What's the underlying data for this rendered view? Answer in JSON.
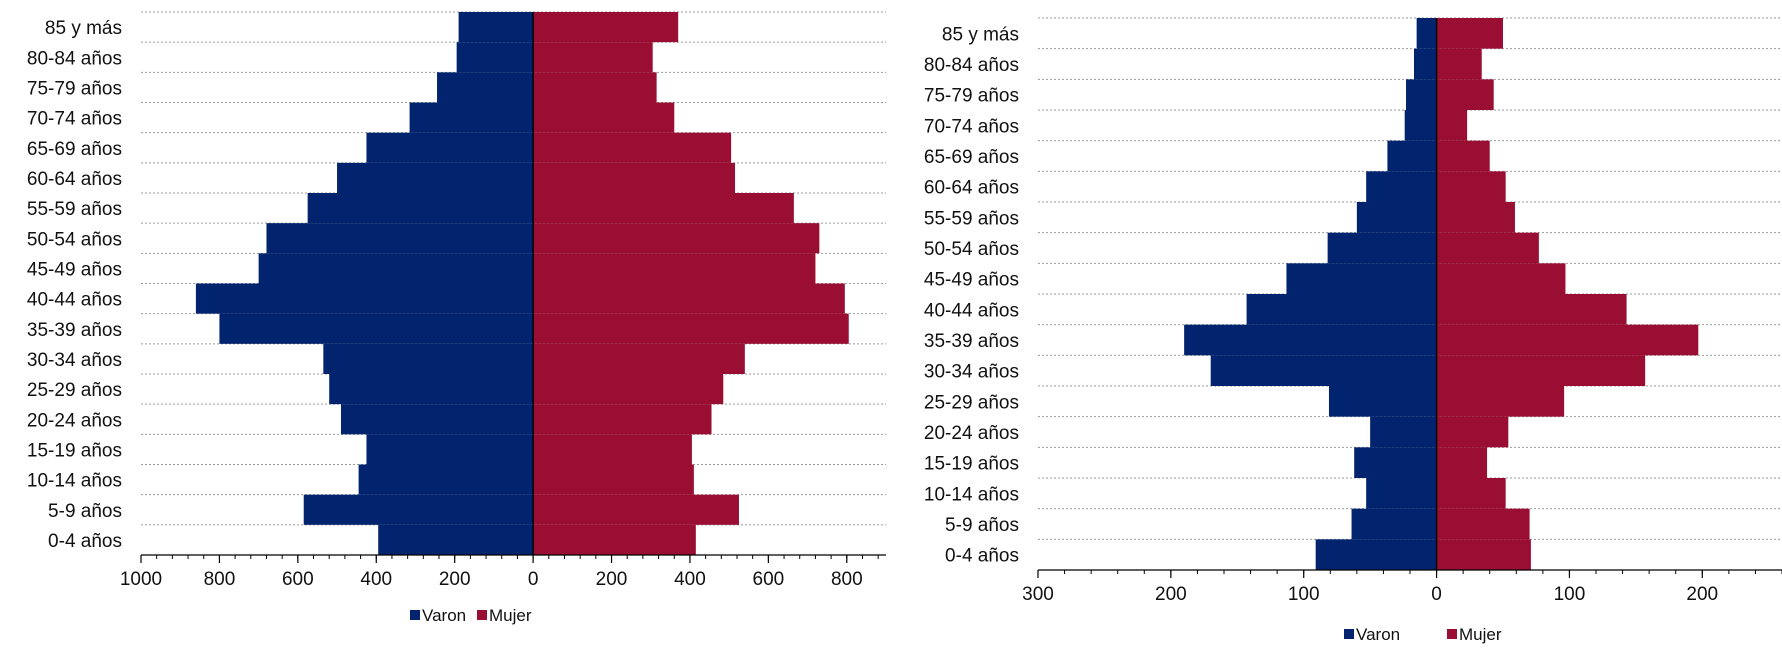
{
  "colors": {
    "varon": "#02246F",
    "mujer": "#9A0E33",
    "grid": "#9a9a9a",
    "axis": "#000000"
  },
  "chart_data": [
    {
      "type": "bar",
      "orientation": "horizontal",
      "categories": [
        "85 y más",
        "80-84 años",
        "75-79 años",
        "70-74 años",
        "65-69 años",
        "60-64 años",
        "55-59 años",
        "50-54 años",
        "45-49 años",
        "40-44 años",
        "35-39 años",
        "30-34 años",
        "25-29 años",
        "20-24 años",
        "15-19 años",
        "10-14 años",
        "5-9 años",
        "0-4 años"
      ],
      "series": [
        {
          "name": "Varon",
          "values": [
            190,
            195,
            245,
            315,
            425,
            500,
            575,
            680,
            700,
            860,
            800,
            535,
            520,
            490,
            425,
            445,
            585,
            395
          ]
        },
        {
          "name": "Mujer",
          "values": [
            370,
            305,
            315,
            360,
            505,
            515,
            665,
            730,
            720,
            795,
            805,
            540,
            485,
            455,
            405,
            410,
            525,
            415
          ]
        }
      ],
      "xlim": [
        -1000,
        900
      ],
      "ticks": [
        {
          "value": -1000,
          "label": "1000"
        },
        {
          "value": -800,
          "label": "800"
        },
        {
          "value": -600,
          "label": "600"
        },
        {
          "value": -400,
          "label": "400"
        },
        {
          "value": -200,
          "label": "200"
        },
        {
          "value": 0,
          "label": "0"
        },
        {
          "value": 200,
          "label": "200"
        },
        {
          "value": 400,
          "label": "400"
        },
        {
          "value": 600,
          "label": "600"
        },
        {
          "value": 800,
          "label": "800"
        }
      ],
      "grid": true,
      "legend": "bottom-center"
    },
    {
      "type": "bar",
      "orientation": "horizontal",
      "categories": [
        "85 y más",
        "80-84 años",
        "75-79 años",
        "70-74 años",
        "65-69 años",
        "60-64 años",
        "55-59 años",
        "50-54 años",
        "45-49 años",
        "40-44 años",
        "35-39 años",
        "30-34 años",
        "25-29 años",
        "20-24 años",
        "15-19 años",
        "10-14 años",
        "5-9 años",
        "0-4 años"
      ],
      "series": [
        {
          "name": "Varon",
          "values": [
            15,
            17,
            23,
            24,
            37,
            53,
            60,
            82,
            113,
            143,
            190,
            170,
            81,
            50,
            62,
            53,
            64,
            91
          ]
        },
        {
          "name": "Mujer",
          "values": [
            50,
            34,
            43,
            23,
            40,
            52,
            59,
            77,
            97,
            143,
            197,
            157,
            96,
            54,
            38,
            52,
            70,
            71
          ]
        }
      ],
      "xlim": [
        -300,
        260
      ],
      "ticks": [
        {
          "value": -300,
          "label": "300"
        },
        {
          "value": -200,
          "label": "200"
        },
        {
          "value": -100,
          "label": "100"
        },
        {
          "value": 0,
          "label": "0"
        },
        {
          "value": 100,
          "label": "100"
        },
        {
          "value": 200,
          "label": "200"
        }
      ],
      "grid": true,
      "legend": "bottom-center"
    }
  ]
}
